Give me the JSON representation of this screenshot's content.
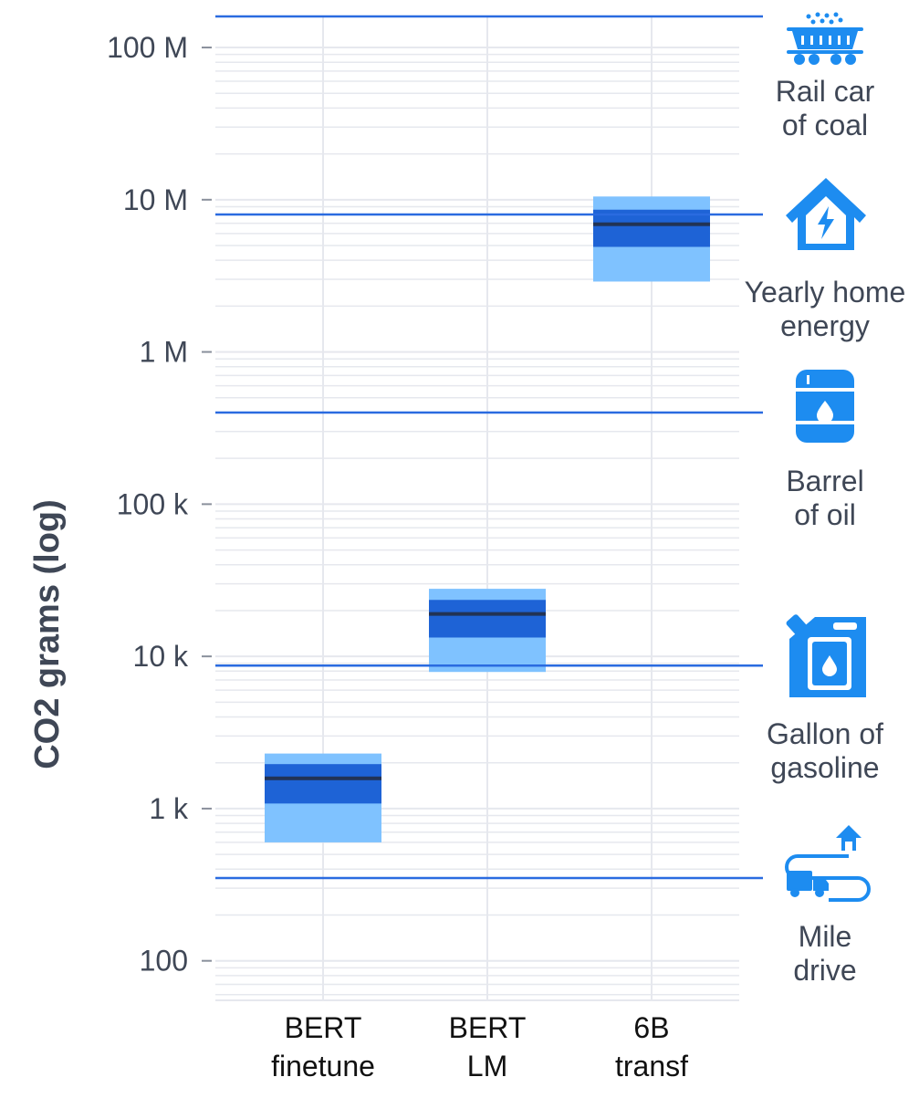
{
  "chart_data": {
    "type": "box",
    "ylabel": "CO2 grams (log)",
    "yscale": "log",
    "ylim": [
      55,
      160000000
    ],
    "yticks": [
      {
        "value": 100,
        "label": "100"
      },
      {
        "value": 1000,
        "label": "1 k"
      },
      {
        "value": 10000,
        "label": "10 k"
      },
      {
        "value": 100000,
        "label": "100 k"
      },
      {
        "value": 1000000,
        "label": "1 M"
      },
      {
        "value": 10000000,
        "label": "10 M"
      },
      {
        "value": 100000000,
        "label": "100 M"
      }
    ],
    "categories": [
      {
        "lines": [
          "BERT",
          "finetune"
        ]
      },
      {
        "lines": [
          "BERT",
          "LM"
        ]
      },
      {
        "lines": [
          "6B",
          "transf"
        ]
      }
    ],
    "boxes": [
      {
        "low": 600,
        "q1": 1080,
        "median": 1580,
        "q3": 1960,
        "high": 2300
      },
      {
        "low": 7900,
        "q1": 13300,
        "median": 19000,
        "q3": 23500,
        "high": 27800
      },
      {
        "low": 2900000,
        "q1": 4900000,
        "median": 6900000,
        "q3": 8600000,
        "high": 10500000
      }
    ],
    "references": [
      {
        "value": 160000000,
        "lines": [
          "Rail car",
          "of coal"
        ],
        "icon": "rail-car-icon"
      },
      {
        "value": 8000000,
        "lines": [
          "Yearly home",
          "energy"
        ],
        "icon": "house-energy-icon"
      },
      {
        "value": 400000,
        "lines": [
          "Barrel",
          "of oil"
        ],
        "icon": "oil-barrel-icon"
      },
      {
        "value": 8700,
        "lines": [
          "Gallon of",
          "gasoline"
        ],
        "icon": "gasoline-can-icon"
      },
      {
        "value": 350,
        "lines": [
          "Mile",
          "drive"
        ],
        "icon": "truck-route-icon"
      }
    ],
    "grid": true,
    "colors": {
      "outer_band": "#7fc2ff",
      "inner_band": "#1e63d6",
      "median": "#223355",
      "reference_line": "#2a6be0",
      "icon": "#1d8cf0",
      "grid": "#e6e8ee"
    }
  }
}
